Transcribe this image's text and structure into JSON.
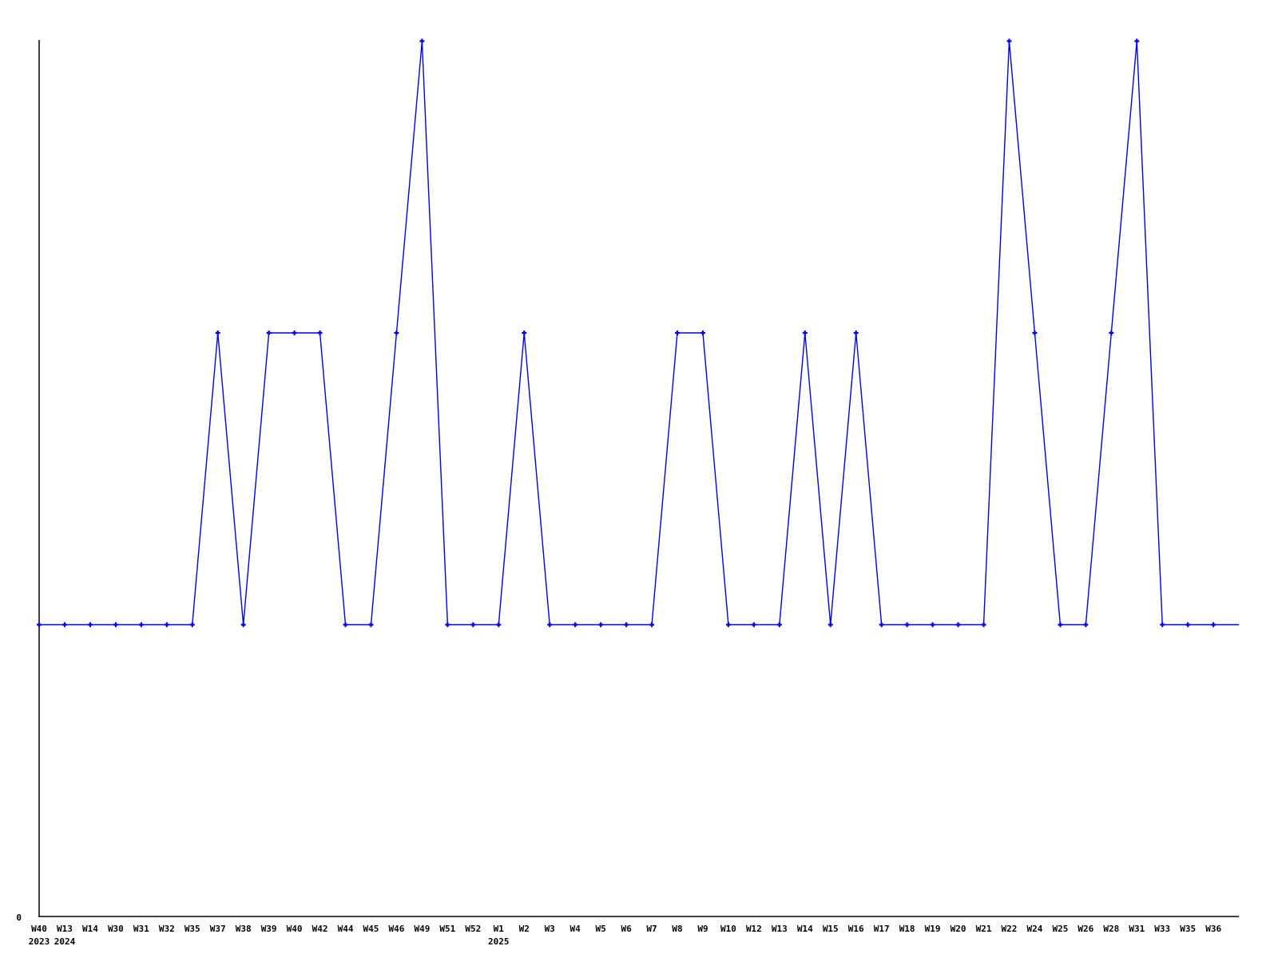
{
  "chart_data": {
    "type": "line",
    "title": "",
    "xlabel": "",
    "ylabel": "",
    "x_tick_labels": [
      "W40",
      "W13",
      "W14",
      "W30",
      "W31",
      "W32",
      "W35",
      "W37",
      "W38",
      "W39",
      "W40",
      "W42",
      "W44",
      "W45",
      "W46",
      "W49",
      "W51",
      "W52",
      "W1",
      "W2",
      "W3",
      "W4",
      "W5",
      "W6",
      "W7",
      "W8",
      "W9",
      "W10",
      "W12",
      "W13",
      "W14",
      "W15",
      "W16",
      "W17",
      "W18",
      "W19",
      "W20",
      "W21",
      "W22",
      "W24",
      "W25",
      "W26",
      "W28",
      "W31",
      "W33",
      "W35",
      "W36"
    ],
    "values": [
      1,
      1,
      1,
      1,
      1,
      1,
      1,
      2,
      1,
      2,
      2,
      2,
      1,
      1,
      2,
      3,
      1,
      1,
      1,
      2,
      1,
      1,
      1,
      1,
      1,
      2,
      2,
      1,
      1,
      1,
      2,
      1,
      2,
      1,
      1,
      1,
      1,
      1,
      3,
      2,
      1,
      1,
      2,
      3,
      1,
      1,
      1
    ],
    "year_row_labels": [
      {
        "tick_index": 0,
        "label": "2023"
      },
      {
        "tick_index": 1,
        "label": "2024"
      },
      {
        "tick_index": 18,
        "label": "2025"
      }
    ],
    "y_origin_label": "0",
    "ylim": [
      0,
      3
    ],
    "grid": false,
    "legend_position": "none",
    "line_color": "#0000ee",
    "axis_color": "#000000",
    "marker_style": "plus",
    "line_extends_one_step_after_last_point": true
  }
}
